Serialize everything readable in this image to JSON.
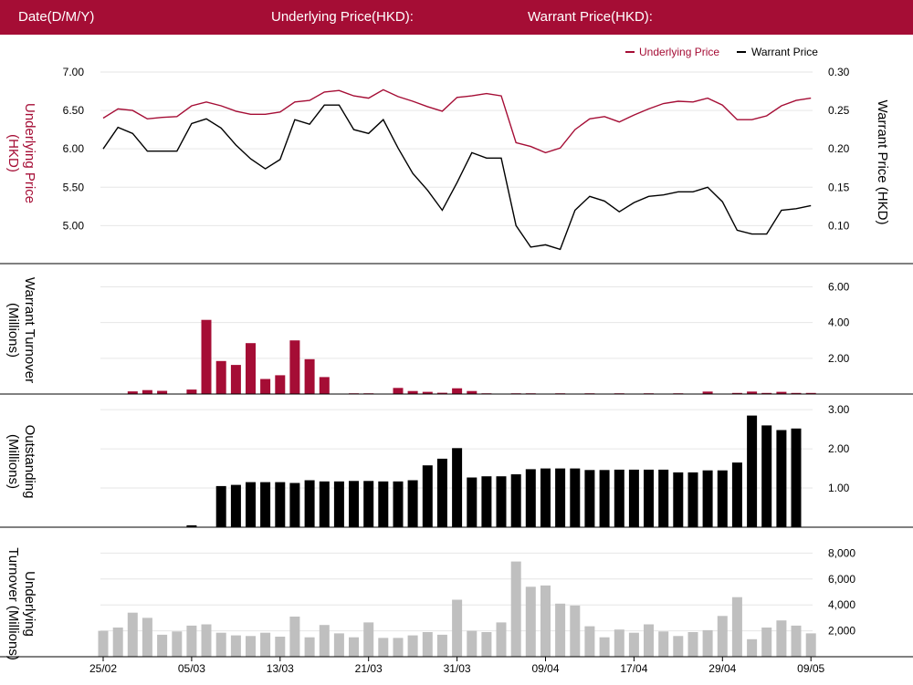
{
  "header": {
    "date_label": "Date(D/M/Y)",
    "underlying_label": "Underlying Price(HKD):",
    "warrant_label": "Warrant Price(HKD):"
  },
  "colors": {
    "header_bg": "#a50d35",
    "underlying": "#a50d35",
    "warrant": "#000000",
    "underlying_turnover": "#bfbfbf",
    "grid": "#e6e6e6"
  },
  "chart_data": [
    {
      "type": "line",
      "panel": "price",
      "legend": [
        "Underlying Price",
        "Warrant Price"
      ],
      "legend_position": "top-right",
      "ylabel_left": "Underlying Price (HKD)",
      "ylabel_right": "Warrant  Price (HKD)",
      "yticks_left": [
        "7.00",
        "6.50",
        "6.00",
        "5.50",
        "5.00"
      ],
      "yticks_right": [
        "0.30",
        "0.25",
        "0.20",
        "0.15",
        "0.10"
      ],
      "ylim_left": [
        4.6,
        7.0
      ],
      "ylim_right": [
        0.06,
        0.3
      ],
      "series": [
        {
          "name": "Underlying Price",
          "axis": "left",
          "values": [
            6.4,
            6.52,
            6.5,
            6.39,
            6.41,
            6.42,
            6.56,
            6.61,
            6.56,
            6.49,
            6.45,
            6.45,
            6.48,
            6.61,
            6.63,
            6.74,
            6.76,
            6.69,
            6.66,
            6.77,
            6.68,
            6.62,
            6.55,
            6.49,
            6.67,
            6.69,
            6.72,
            6.69,
            6.08,
            6.03,
            5.95,
            6.01,
            6.25,
            6.39,
            6.42,
            6.35,
            6.44,
            6.52,
            6.59,
            6.62,
            6.61,
            6.66,
            6.57,
            6.38,
            6.38,
            6.43,
            6.56,
            6.63,
            6.66
          ]
        },
        {
          "name": "Warrant Price",
          "axis": "right",
          "values": [
            0.2,
            0.228,
            0.22,
            0.197,
            0.197,
            0.197,
            0.233,
            0.239,
            0.227,
            0.205,
            0.187,
            0.174,
            0.186,
            0.238,
            0.232,
            0.257,
            0.257,
            0.225,
            0.22,
            0.238,
            0.201,
            0.168,
            0.146,
            0.12,
            0.156,
            0.195,
            0.188,
            0.188,
            0.1,
            0.072,
            0.075,
            0.069,
            0.12,
            0.138,
            0.132,
            0.118,
            0.13,
            0.138,
            0.14,
            0.144,
            0.144,
            0.15,
            0.131,
            0.094,
            0.089,
            0.089,
            0.12,
            0.122,
            0.126
          ]
        }
      ]
    },
    {
      "type": "bar",
      "panel": "warrant_turnover",
      "ylabel": "Warrant  Turnover (Millions)",
      "yticks": [
        "6.00",
        "4.00",
        "2.00"
      ],
      "ylim": [
        0,
        7.3
      ],
      "series": [
        {
          "name": "Warrant Turnover",
          "values": [
            0,
            0,
            0.15,
            0.22,
            0.18,
            0,
            0.25,
            4.15,
            1.85,
            1.63,
            2.85,
            0.84,
            1.05,
            3.0,
            1.95,
            0.95,
            0,
            0.04,
            0.04,
            0,
            0.34,
            0.17,
            0.12,
            0.07,
            0.32,
            0.17,
            0.04,
            0,
            0.04,
            0.04,
            0,
            0.04,
            0,
            0.04,
            0,
            0.04,
            0,
            0.04,
            0,
            0.04,
            0,
            0.14,
            0,
            0.06,
            0.14,
            0.06,
            0.12,
            0.06,
            0.06
          ]
        }
      ]
    },
    {
      "type": "bar",
      "panel": "outstanding",
      "ylabel": "Outstanding (Millions)",
      "yticks": [
        "3.00",
        "2.00",
        "1.00"
      ],
      "ylim": [
        0,
        3.4
      ],
      "series": [
        {
          "name": "Outstanding",
          "values": [
            0,
            0,
            0,
            0,
            0,
            0,
            0.05,
            0,
            1.05,
            1.08,
            1.15,
            1.15,
            1.15,
            1.13,
            1.2,
            1.17,
            1.17,
            1.18,
            1.18,
            1.17,
            1.17,
            1.2,
            1.58,
            1.75,
            2.02,
            1.27,
            1.3,
            1.3,
            1.35,
            1.48,
            1.5,
            1.5,
            1.5,
            1.46,
            1.46,
            1.47,
            1.47,
            1.47,
            1.47,
            1.4,
            1.4,
            1.45,
            1.45,
            1.65,
            2.85,
            2.6,
            2.48,
            2.52,
            0
          ]
        }
      ]
    },
    {
      "type": "bar",
      "panel": "underlying_turnover",
      "ylabel": "Underlying Turnover (Millions)",
      "yticks": [
        "8,000",
        "6,000",
        "4,000",
        "2,000"
      ],
      "ylim": [
        0,
        10000
      ],
      "xticks": [
        "25/02",
        "05/03",
        "13/03",
        "21/03",
        "31/03",
        "09/04",
        "17/04",
        "29/04",
        "09/05"
      ],
      "series": [
        {
          "name": "Underlying Turnover",
          "values": [
            2000,
            2250,
            3400,
            3000,
            1700,
            1950,
            2400,
            2500,
            1850,
            1650,
            1600,
            1850,
            1550,
            3100,
            1500,
            2450,
            1800,
            1500,
            2650,
            1450,
            1450,
            1650,
            1900,
            1700,
            4400,
            2000,
            1900,
            2650,
            7350,
            5400,
            5500,
            4100,
            3950,
            2350,
            1500,
            2100,
            1850,
            2500,
            1950,
            1600,
            1900,
            2050,
            3150,
            4600,
            1350,
            2250,
            2800,
            2400,
            1800
          ]
        }
      ]
    }
  ]
}
